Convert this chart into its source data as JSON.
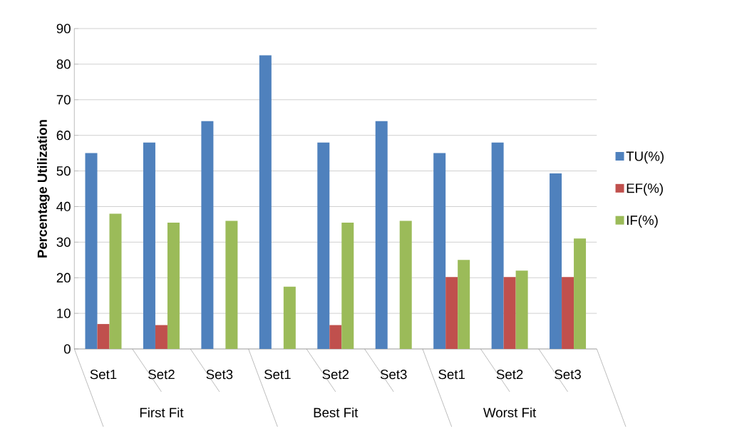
{
  "chart_data": {
    "type": "bar",
    "ylabel": "Percentage Utilization",
    "categories": [
      "Set1",
      "Set2",
      "Set3",
      "Set1",
      "Set2",
      "Set3",
      "Set1",
      "Set2",
      "Set3"
    ],
    "series": [
      {
        "name": "TU(%)",
        "color": "#4f81bd",
        "values": [
          55,
          58,
          64,
          82.5,
          58,
          64,
          55,
          58,
          49.3
        ]
      },
      {
        "name": "EF(%)",
        "color": "#c0504d",
        "values": [
          7,
          6.7,
          0,
          0,
          6.7,
          0,
          20.2,
          20.2,
          20.2
        ]
      },
      {
        "name": "IF(%)",
        "color": "#9bbb59",
        "values": [
          38,
          35.5,
          36,
          17.5,
          35.5,
          36,
          25,
          22,
          31
        ]
      }
    ],
    "annotations": [
      "First Fit",
      "Best Fit",
      "Worst Fit"
    ],
    "ylim": [
      0,
      90
    ],
    "yticks": [
      0,
      10,
      20,
      30,
      40,
      50,
      60,
      70,
      80,
      90
    ],
    "grid": "y",
    "legend": "right"
  }
}
